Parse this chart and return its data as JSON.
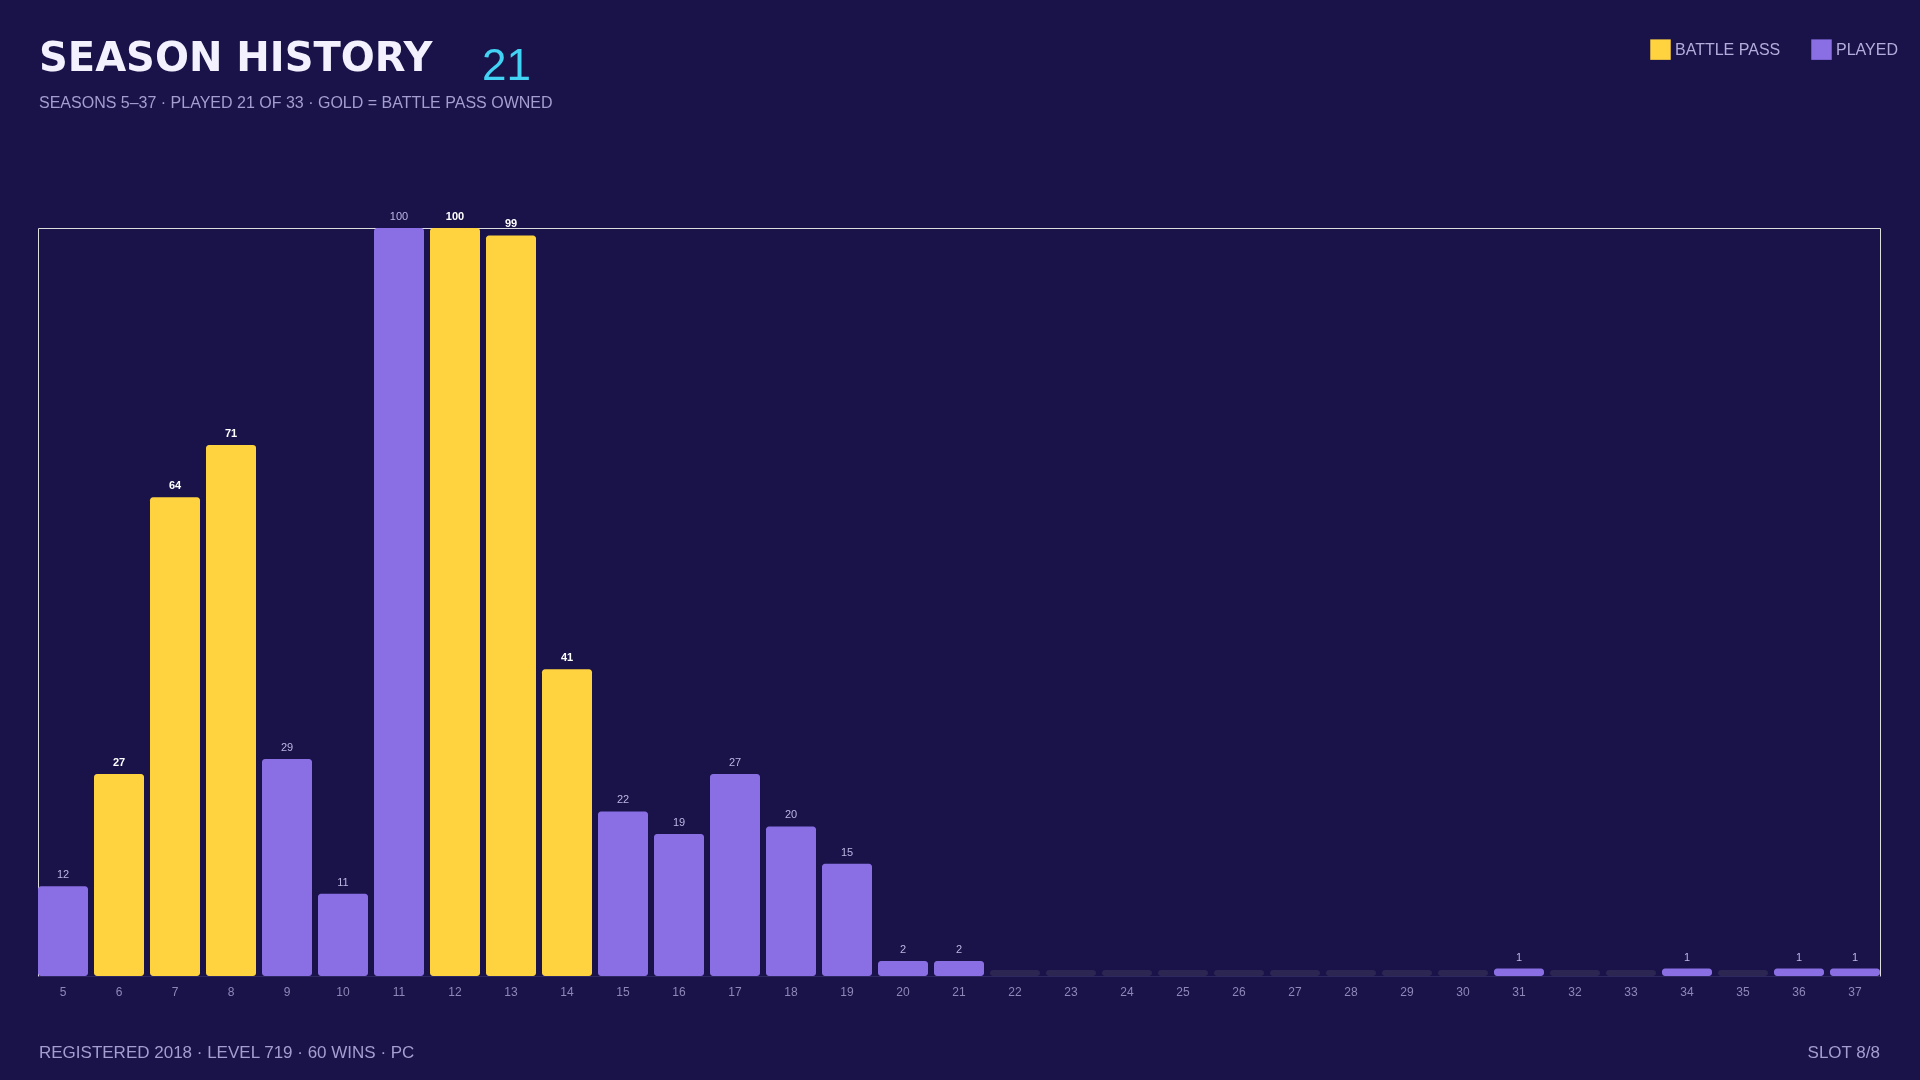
{
  "chart_data": {
    "type": "bar",
    "title": "SEASON HISTORY",
    "subtitle": "SEASONS 5–37 · PLAYED 21 OF 33 · GOLD = BATTLE PASS OWNED",
    "categories": [
      "5",
      "6",
      "7",
      "8",
      "9",
      "10",
      "11",
      "12",
      "13",
      "14",
      "15",
      "16",
      "17",
      "18",
      "19",
      "20",
      "21",
      "22",
      "23",
      "24",
      "25",
      "26",
      "27",
      "28",
      "29",
      "30",
      "31",
      "32",
      "33",
      "34",
      "35",
      "36",
      "37"
    ],
    "stacked": true,
    "tick_labels": "x",
    "legend": "top right",
    "series": [
      {
        "name": "BATTLE PASS",
        "color": "#ffd23f",
        "values": [
          null,
          27,
          64,
          71,
          null,
          null,
          null,
          100,
          99,
          41,
          null,
          null,
          null,
          null,
          null,
          null,
          null,
          null,
          null,
          null,
          null,
          null,
          null,
          null,
          null,
          null,
          null,
          null,
          null,
          null,
          null,
          null,
          null
        ],
        "value_labels": [
          null,
          "27",
          "64",
          "71",
          null,
          null,
          null,
          "100",
          "99",
          "41",
          null,
          null,
          null,
          null,
          null,
          null,
          null,
          null,
          null,
          null,
          null,
          null,
          null,
          null,
          null,
          null,
          null,
          null,
          null,
          null,
          null,
          null,
          null
        ]
      },
      {
        "name": "PLAYED",
        "color": "#8a6ee4",
        "values": [
          12,
          null,
          null,
          null,
          29,
          11,
          100,
          null,
          null,
          null,
          22,
          19,
          27,
          20,
          15,
          2,
          2,
          null,
          null,
          null,
          null,
          null,
          null,
          null,
          null,
          null,
          1,
          null,
          null,
          1,
          null,
          1,
          1
        ],
        "value_labels": [
          "12",
          null,
          null,
          null,
          "29",
          "11",
          "100",
          null,
          null,
          null,
          "22",
          "19",
          "27",
          "20",
          "15",
          "2",
          "2",
          null,
          null,
          null,
          null,
          null,
          null,
          null,
          null,
          null,
          "1",
          null,
          null,
          "1",
          null,
          "1",
          "1"
        ]
      },
      {
        "color": "#2c2652",
        "values": [
          null,
          null,
          null,
          null,
          null,
          null,
          null,
          null,
          null,
          null,
          null,
          null,
          null,
          null,
          null,
          null,
          null,
          0.8,
          0.8,
          0.8,
          0.8,
          0.8,
          0.8,
          0.8,
          0.8,
          0.8,
          null,
          0.8,
          0.8,
          null,
          0.8,
          null,
          null
        ]
      }
    ],
    "annotations": [
      "21",
      "REGISTERED 2018 · LEVEL 719 · 60 WINS · PC",
      "SLOT 8/8"
    ]
  }
}
